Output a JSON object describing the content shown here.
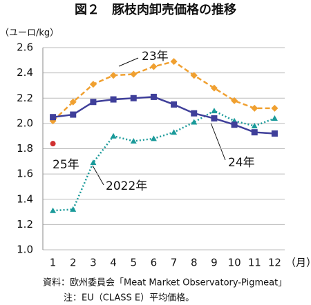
{
  "chart_data": {
    "type": "line",
    "title": "図２　豚枝肉卸売価格の推移",
    "y_label": "（ユーロ/kg）",
    "x_label": "（月）",
    "x": [
      1,
      2,
      3,
      4,
      5,
      6,
      7,
      8,
      9,
      10,
      11,
      12
    ],
    "xlim": [
      0.5,
      12.5
    ],
    "xticks": [
      1,
      2,
      3,
      4,
      5,
      6,
      7,
      8,
      9,
      10,
      11,
      12
    ],
    "ylim": [
      1.0,
      2.6
    ],
    "yticks": [
      {
        "value": 1.0,
        "label": "1.0"
      },
      1.2,
      1.4,
      1.6,
      1.8,
      {
        "value": 2.0,
        "label": "2.0"
      },
      2.2,
      2.4,
      2.6
    ],
    "grid": true,
    "series": [
      {
        "name": "2022年",
        "color": "#1a9a9a",
        "marker": "triangle",
        "dash": "dotted",
        "values": [
          1.31,
          1.32,
          1.69,
          1.9,
          1.86,
          1.88,
          1.93,
          2.01,
          2.1,
          2.02,
          1.98,
          2.04
        ]
      },
      {
        "name": "23年",
        "color": "#f0a030",
        "marker": "diamond",
        "dash": "dashed",
        "values": [
          2.02,
          2.17,
          2.31,
          2.38,
          2.39,
          2.45,
          2.49,
          2.38,
          2.28,
          2.18,
          2.12,
          2.12
        ]
      },
      {
        "name": "24年",
        "color": "#3f3f9a",
        "marker": "square",
        "dash": "solid",
        "values": [
          2.05,
          2.07,
          2.17,
          2.19,
          2.2,
          2.21,
          2.15,
          2.08,
          2.04,
          1.99,
          1.93,
          1.92
        ]
      },
      {
        "name": "25年",
        "color": "#d03030",
        "marker": "circle",
        "dash": "solid",
        "values": [
          1.84,
          null,
          null,
          null,
          null,
          null,
          null,
          null,
          null,
          null,
          null,
          null
        ]
      }
    ],
    "notes": [
      "資料：欧州委員会「Meat Market Observatory-Pigmeat」",
      "注：EU（CLASS E）平均価格。"
    ]
  }
}
